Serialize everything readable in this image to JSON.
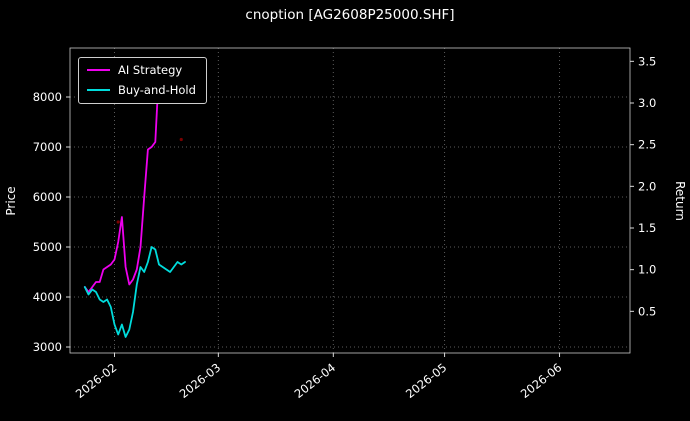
{
  "chart_data": {
    "type": "line",
    "title": "cnoption [AG2608P25000.SHF]",
    "ylabel_left": "Price",
    "ylabel_right": "Return",
    "grid": true,
    "legend_position": "upper-left",
    "background": "#000000",
    "x_domain": [
      "2026-01-20",
      "2026-06-20"
    ],
    "x_ticks": [
      "2026-02",
      "2026-03",
      "2026-04",
      "2026-05",
      "2026-06"
    ],
    "y_left_ticks": [
      "3000",
      "4000",
      "5000",
      "6000",
      "7000",
      "8000"
    ],
    "y_right_ticks": [
      "0.5",
      "1.0",
      "1.5",
      "2.0",
      "2.5",
      "3.0",
      "3.5"
    ],
    "ylim_left": [
      2880,
      8980
    ],
    "ylim_right": [
      0.0,
      3.66
    ],
    "series": [
      {
        "name": "AI Strategy",
        "color": "#ee00ee",
        "axis": "left",
        "x": [
          "2026-01-24",
          "2026-01-25",
          "2026-01-26",
          "2026-01-27",
          "2026-01-28",
          "2026-01-29",
          "2026-01-30",
          "2026-01-31",
          "2026-02-01",
          "2026-02-02",
          "2026-02-03",
          "2026-02-04",
          "2026-02-05",
          "2026-02-06",
          "2026-02-07",
          "2026-02-08",
          "2026-02-09",
          "2026-02-10",
          "2026-02-11",
          "2026-02-12",
          "2026-02-13"
        ],
        "y": [
          4200,
          4100,
          4200,
          4300,
          4300,
          4550,
          4600,
          4650,
          4750,
          5100,
          5600,
          4600,
          4250,
          4350,
          4550,
          5000,
          6000,
          6950,
          7000,
          7100,
          8550
        ]
      },
      {
        "name": "Buy-and-Hold",
        "color": "#00dcdc",
        "axis": "left",
        "x": [
          "2026-01-24",
          "2026-01-25",
          "2026-01-26",
          "2026-01-27",
          "2026-01-28",
          "2026-01-29",
          "2026-01-30",
          "2026-01-31",
          "2026-02-01",
          "2026-02-02",
          "2026-02-03",
          "2026-02-04",
          "2026-02-05",
          "2026-02-06",
          "2026-02-07",
          "2026-02-08",
          "2026-02-09",
          "2026-02-10",
          "2026-02-11",
          "2026-02-12",
          "2026-02-13",
          "2026-02-14",
          "2026-02-15",
          "2026-02-16",
          "2026-02-17",
          "2026-02-18",
          "2026-02-19",
          "2026-02-20"
        ],
        "y": [
          4200,
          4050,
          4150,
          4100,
          3950,
          3900,
          3950,
          3800,
          3450,
          3250,
          3450,
          3200,
          3350,
          3700,
          4250,
          4600,
          4500,
          4700,
          5000,
          4950,
          4650,
          4600,
          4550,
          4500,
          4600,
          4700,
          4650,
          4700
        ]
      }
    ],
    "markers": [
      {
        "x": "2026-02-02",
        "y": 5500,
        "color": "#7a0000"
      },
      {
        "x": "2026-02-19",
        "y": 7150,
        "color": "#7a0000"
      }
    ]
  }
}
